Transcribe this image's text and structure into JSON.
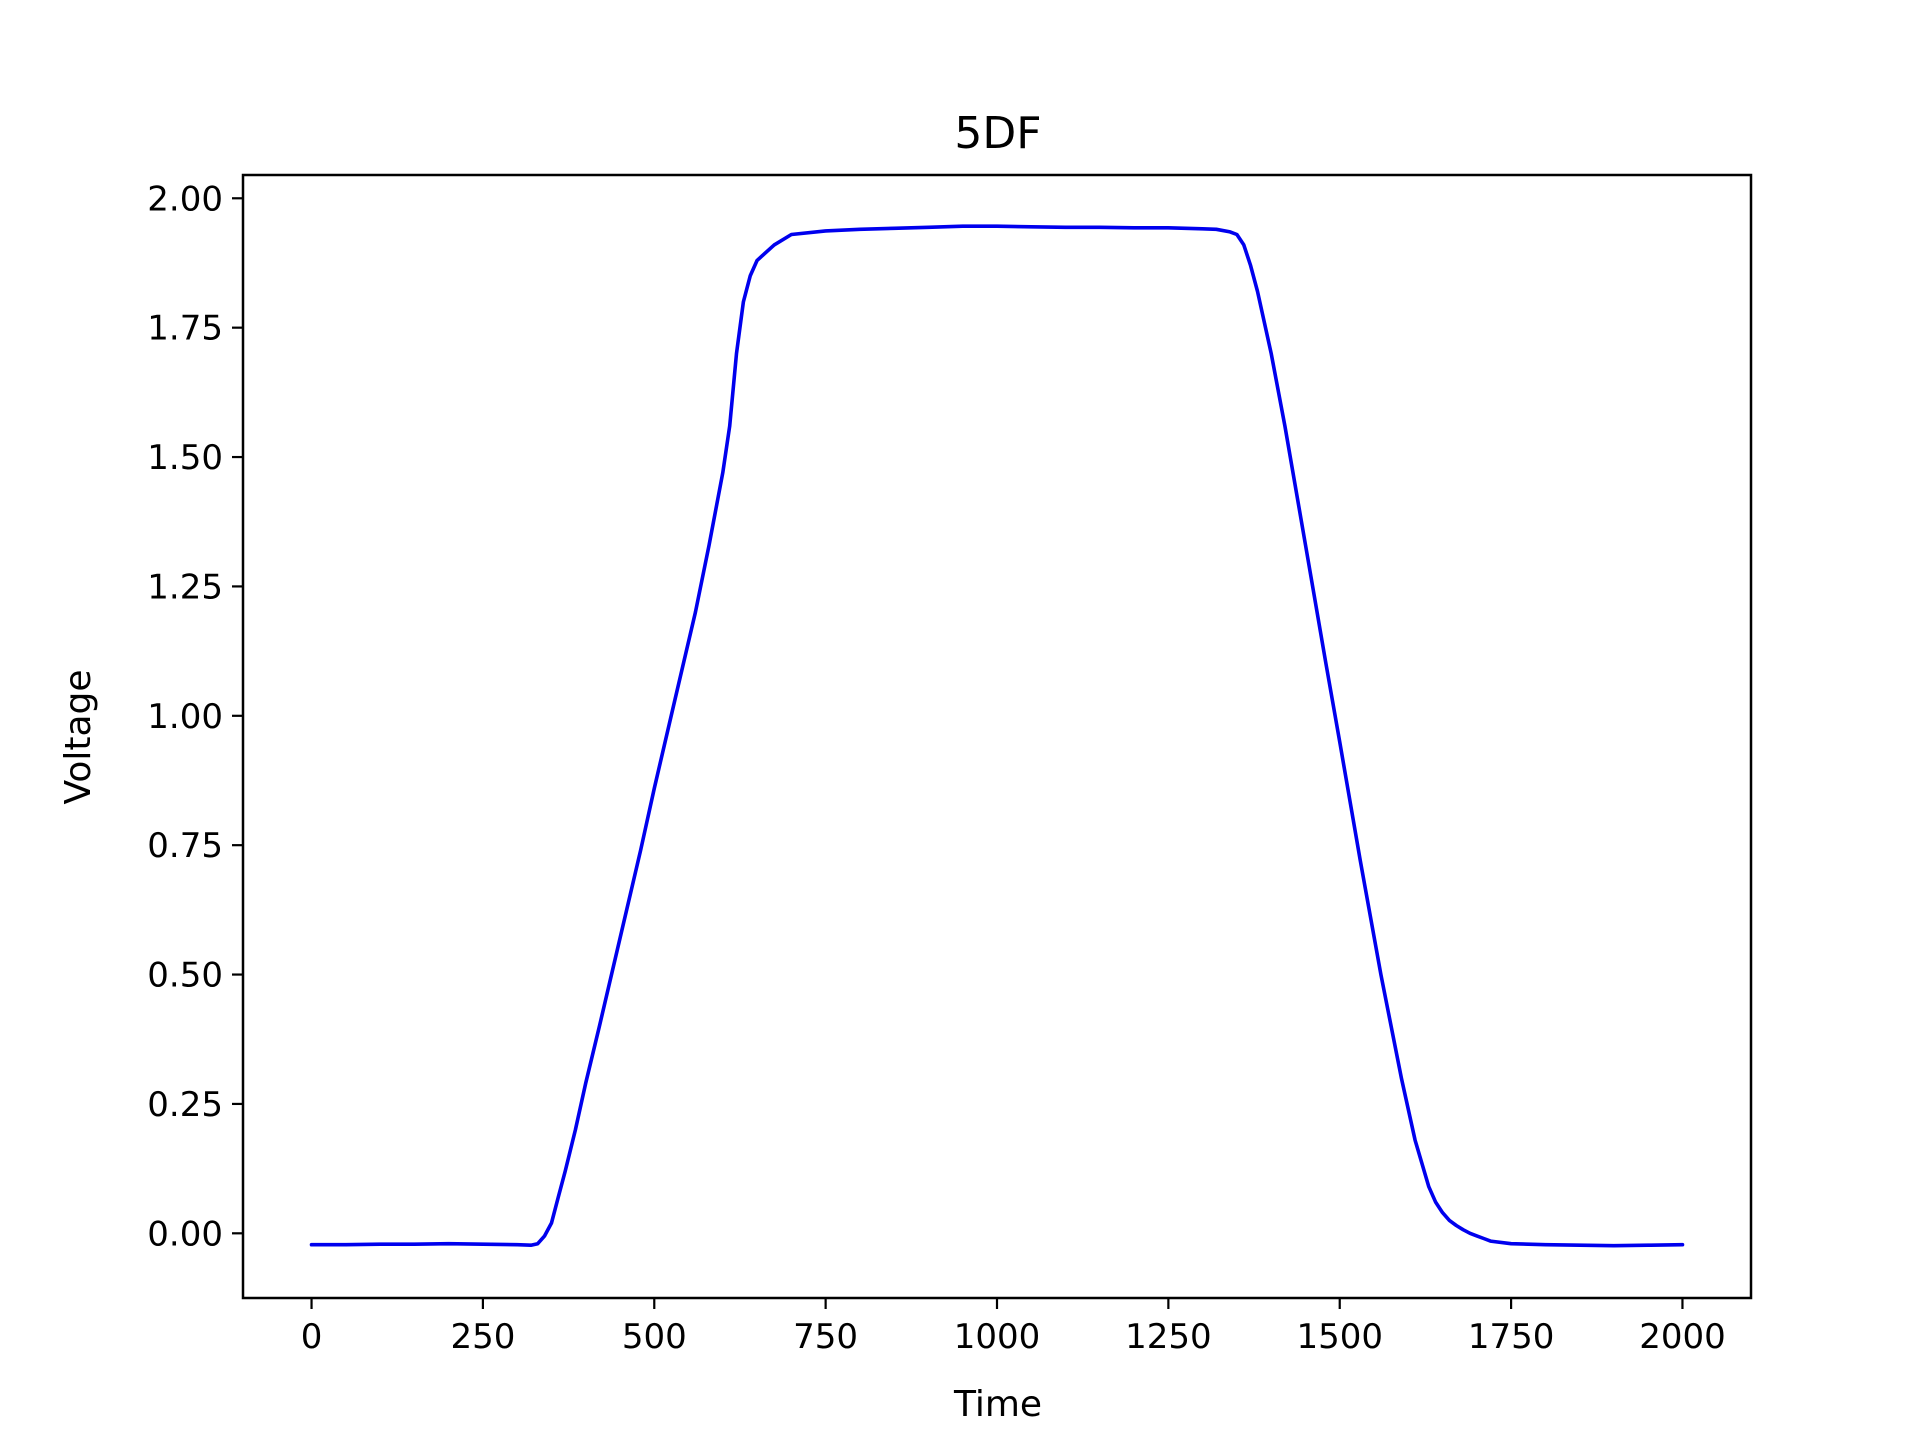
{
  "chart_data": {
    "type": "line",
    "title": "5DF",
    "xlabel": "Time",
    "ylabel": "Voltage",
    "xlim": [
      -100,
      2100
    ],
    "ylim": [
      -0.125,
      2.045
    ],
    "xticks": [
      0,
      250,
      500,
      750,
      1000,
      1250,
      1500,
      1750,
      2000
    ],
    "xtick_labels": [
      "0",
      "250",
      "500",
      "750",
      "1000",
      "1250",
      "1500",
      "1750",
      "2000"
    ],
    "yticks": [
      0.0,
      0.25,
      0.5,
      0.75,
      1.0,
      1.25,
      1.5,
      1.75,
      2.0
    ],
    "ytick_labels": [
      "0.00",
      "0.25",
      "0.50",
      "0.75",
      "1.00",
      "1.25",
      "1.50",
      "1.75",
      "2.00"
    ],
    "grid": false,
    "series": [
      {
        "color": "#0000ee",
        "x": [
          0,
          50,
          100,
          150,
          200,
          250,
          300,
          320,
          330,
          340,
          350,
          360,
          370,
          385,
          400,
          420,
          450,
          480,
          500,
          530,
          560,
          580,
          600,
          610,
          620,
          630,
          640,
          650,
          675,
          700,
          750,
          800,
          850,
          900,
          950,
          1000,
          1050,
          1100,
          1150,
          1200,
          1250,
          1300,
          1320,
          1340,
          1350,
          1360,
          1370,
          1380,
          1400,
          1420,
          1450,
          1480,
          1500,
          1530,
          1560,
          1590,
          1610,
          1630,
          1640,
          1650,
          1660,
          1670,
          1680,
          1690,
          1700,
          1710,
          1720,
          1750,
          1800,
          1850,
          1900,
          1950,
          2000
        ],
        "y": [
          -0.022,
          -0.022,
          -0.021,
          -0.021,
          -0.02,
          -0.021,
          -0.022,
          -0.023,
          -0.02,
          -0.005,
          0.02,
          0.07,
          0.12,
          0.2,
          0.29,
          0.4,
          0.57,
          0.74,
          0.86,
          1.03,
          1.2,
          1.33,
          1.47,
          1.56,
          1.7,
          1.8,
          1.85,
          1.88,
          1.91,
          1.93,
          1.937,
          1.94,
          1.942,
          1.944,
          1.946,
          1.946,
          1.945,
          1.944,
          1.944,
          1.943,
          1.943,
          1.941,
          1.94,
          1.935,
          1.93,
          1.91,
          1.87,
          1.82,
          1.7,
          1.56,
          1.33,
          1.1,
          0.95,
          0.72,
          0.5,
          0.3,
          0.18,
          0.09,
          0.06,
          0.04,
          0.025,
          0.015,
          0.007,
          0.0,
          -0.005,
          -0.01,
          -0.015,
          -0.02,
          -0.022,
          -0.023,
          -0.024,
          -0.023,
          -0.022
        ]
      }
    ]
  }
}
